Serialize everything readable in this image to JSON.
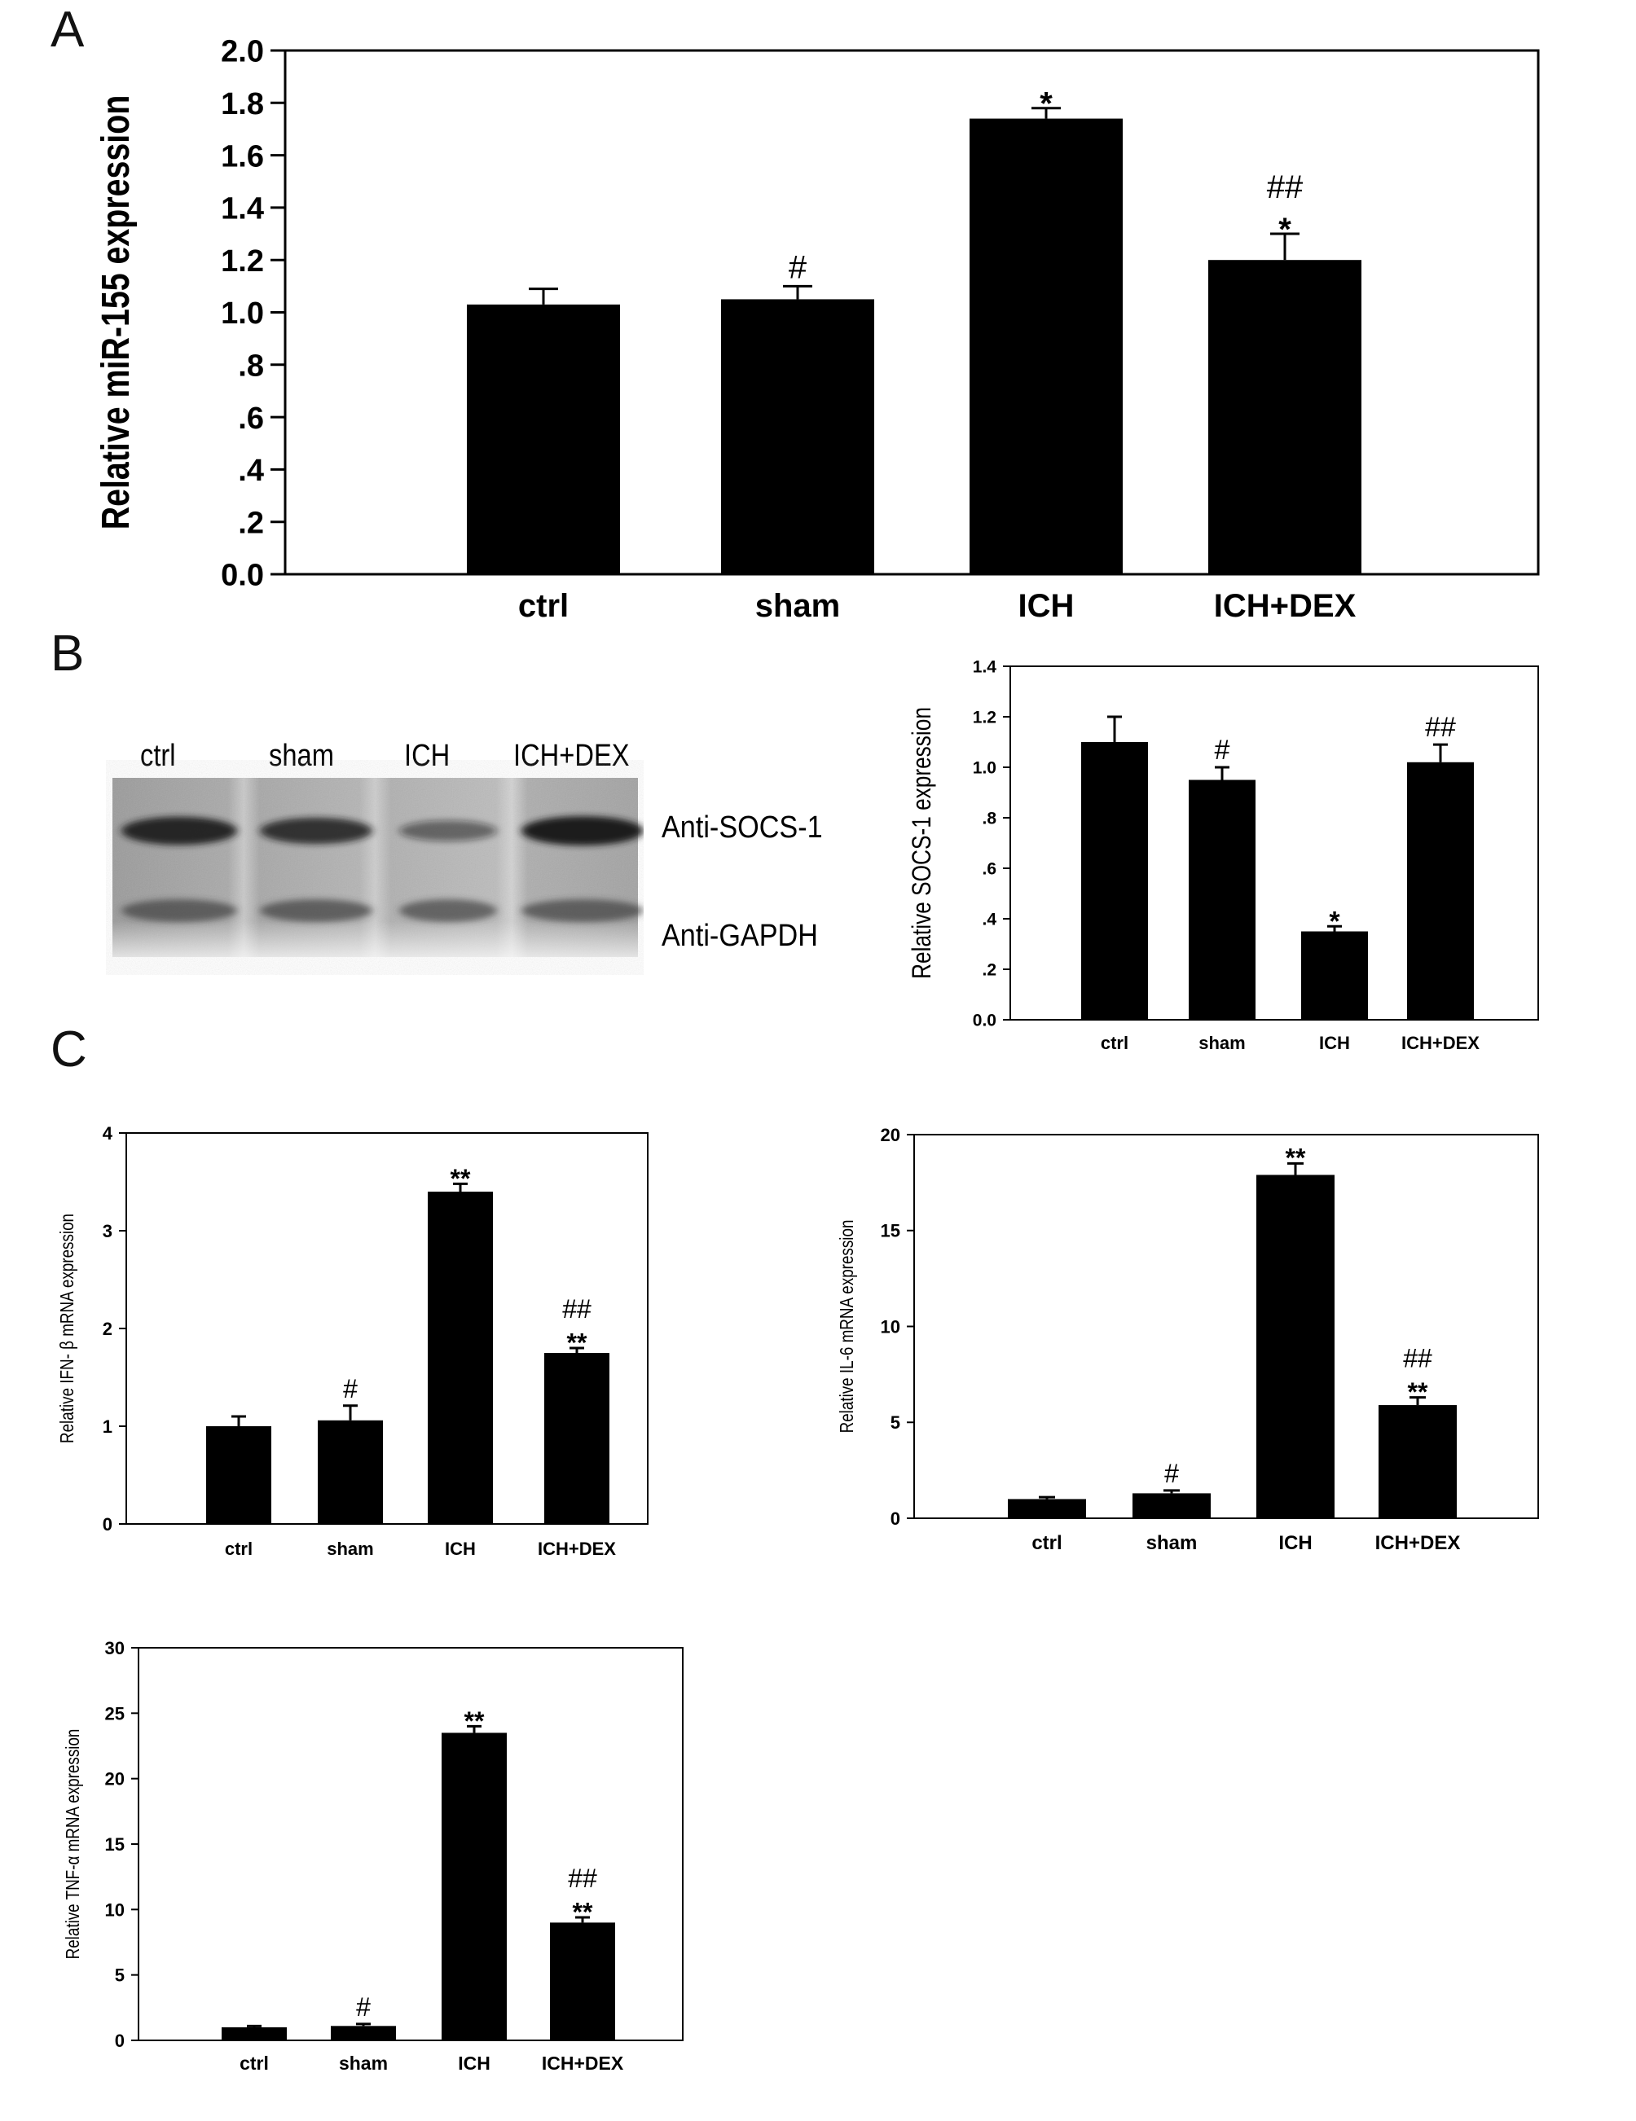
{
  "panels": {
    "a": "A",
    "b": "B",
    "c": "C"
  },
  "blot": {
    "lanes": [
      "ctrl",
      "sham",
      "ICH",
      "ICH+DEX"
    ],
    "band_labels": [
      "Anti-SOCS-1",
      "Anti-GAPDH"
    ],
    "band_intensity": {
      "socs1": [
        0.92,
        0.78,
        0.35,
        1.0
      ],
      "gapdh": [
        0.7,
        0.72,
        0.68,
        0.7
      ]
    }
  },
  "colors": {
    "bar": "#000000",
    "background": "#ffffff"
  },
  "chart_data": [
    {
      "id": "A",
      "type": "bar",
      "categories": [
        "ctrl",
        "sham",
        "ICH",
        "ICH+DEX"
      ],
      "values": [
        1.03,
        1.05,
        1.74,
        1.2
      ],
      "errors": [
        0.06,
        0.05,
        0.04,
        0.1
      ],
      "annotations": [
        [
          "",
          ""
        ],
        [
          "#",
          ""
        ],
        [
          "",
          "*"
        ],
        [
          "##",
          "*"
        ]
      ],
      "ylabel": "Relative miR-155 expression",
      "ylim": [
        0,
        2.0
      ],
      "yticks": [
        0,
        0.2,
        0.4,
        0.6,
        0.8,
        1.0,
        1.2,
        1.4,
        1.6,
        1.8,
        2.0
      ],
      "ytick_labels": [
        "0.0",
        ".2",
        ".4",
        ".6",
        ".8",
        "1.0",
        "1.2",
        "1.4",
        "1.6",
        "1.8",
        "2.0"
      ],
      "grid": false
    },
    {
      "id": "B",
      "type": "bar",
      "categories": [
        "ctrl",
        "sham",
        "ICH",
        "ICH+DEX"
      ],
      "values": [
        1.1,
        0.95,
        0.35,
        1.02
      ],
      "errors": [
        0.1,
        0.05,
        0.02,
        0.07
      ],
      "annotations": [
        [
          "",
          ""
        ],
        [
          "#",
          ""
        ],
        [
          "",
          "*"
        ],
        [
          "##",
          ""
        ]
      ],
      "ylabel": "Relative SOCS-1 expression",
      "ylim": [
        0,
        1.4
      ],
      "yticks": [
        0,
        0.2,
        0.4,
        0.6,
        0.8,
        1.0,
        1.2,
        1.4
      ],
      "ytick_labels": [
        "0.0",
        ".2",
        ".4",
        ".6",
        ".8",
        "1.0",
        "1.2",
        "1.4"
      ],
      "grid": false
    },
    {
      "id": "C-IFN",
      "type": "bar",
      "categories": [
        "ctrl",
        "sham",
        "ICH",
        "ICH+DEX"
      ],
      "values": [
        1.0,
        1.06,
        3.4,
        1.75
      ],
      "errors": [
        0.1,
        0.15,
        0.08,
        0.05
      ],
      "annotations": [
        [
          "",
          ""
        ],
        [
          "#",
          ""
        ],
        [
          "",
          "**"
        ],
        [
          "##",
          "**"
        ]
      ],
      "ylabel": "Relative IFN- β mRNA expression",
      "ylim": [
        0,
        4
      ],
      "yticks": [
        0,
        1,
        2,
        3,
        4
      ],
      "ytick_labels": [
        "0",
        "1",
        "2",
        "3",
        "4"
      ],
      "grid": false
    },
    {
      "id": "C-IL6",
      "type": "bar",
      "categories": [
        "ctrl",
        "sham",
        "ICH",
        "ICH+DEX"
      ],
      "values": [
        1.0,
        1.3,
        17.9,
        5.9
      ],
      "errors": [
        0.1,
        0.15,
        0.6,
        0.4
      ],
      "annotations": [
        [
          "",
          ""
        ],
        [
          "#",
          ""
        ],
        [
          "",
          "**"
        ],
        [
          "##",
          "**"
        ]
      ],
      "ylabel": "Relative IL-6 mRNA expression",
      "ylim": [
        0,
        20
      ],
      "yticks": [
        0,
        5,
        10,
        15,
        20
      ],
      "ytick_labels": [
        "0",
        "5",
        "10",
        "15",
        "20"
      ],
      "grid": false
    },
    {
      "id": "C-TNF",
      "type": "bar",
      "categories": [
        "ctrl",
        "sham",
        "ICH",
        "ICH+DEX"
      ],
      "values": [
        1.0,
        1.1,
        23.5,
        9.0
      ],
      "errors": [
        0.1,
        0.15,
        0.5,
        0.4
      ],
      "annotations": [
        [
          "",
          ""
        ],
        [
          "#",
          ""
        ],
        [
          "",
          "**"
        ],
        [
          "##",
          "**"
        ]
      ],
      "ylabel": "Relative TNF-α mRNA expression",
      "ylim": [
        0,
        30
      ],
      "yticks": [
        0,
        5,
        10,
        15,
        20,
        25,
        30
      ],
      "ytick_labels": [
        "0",
        "5",
        "10",
        "15",
        "20",
        "25",
        "30"
      ],
      "grid": false
    }
  ]
}
